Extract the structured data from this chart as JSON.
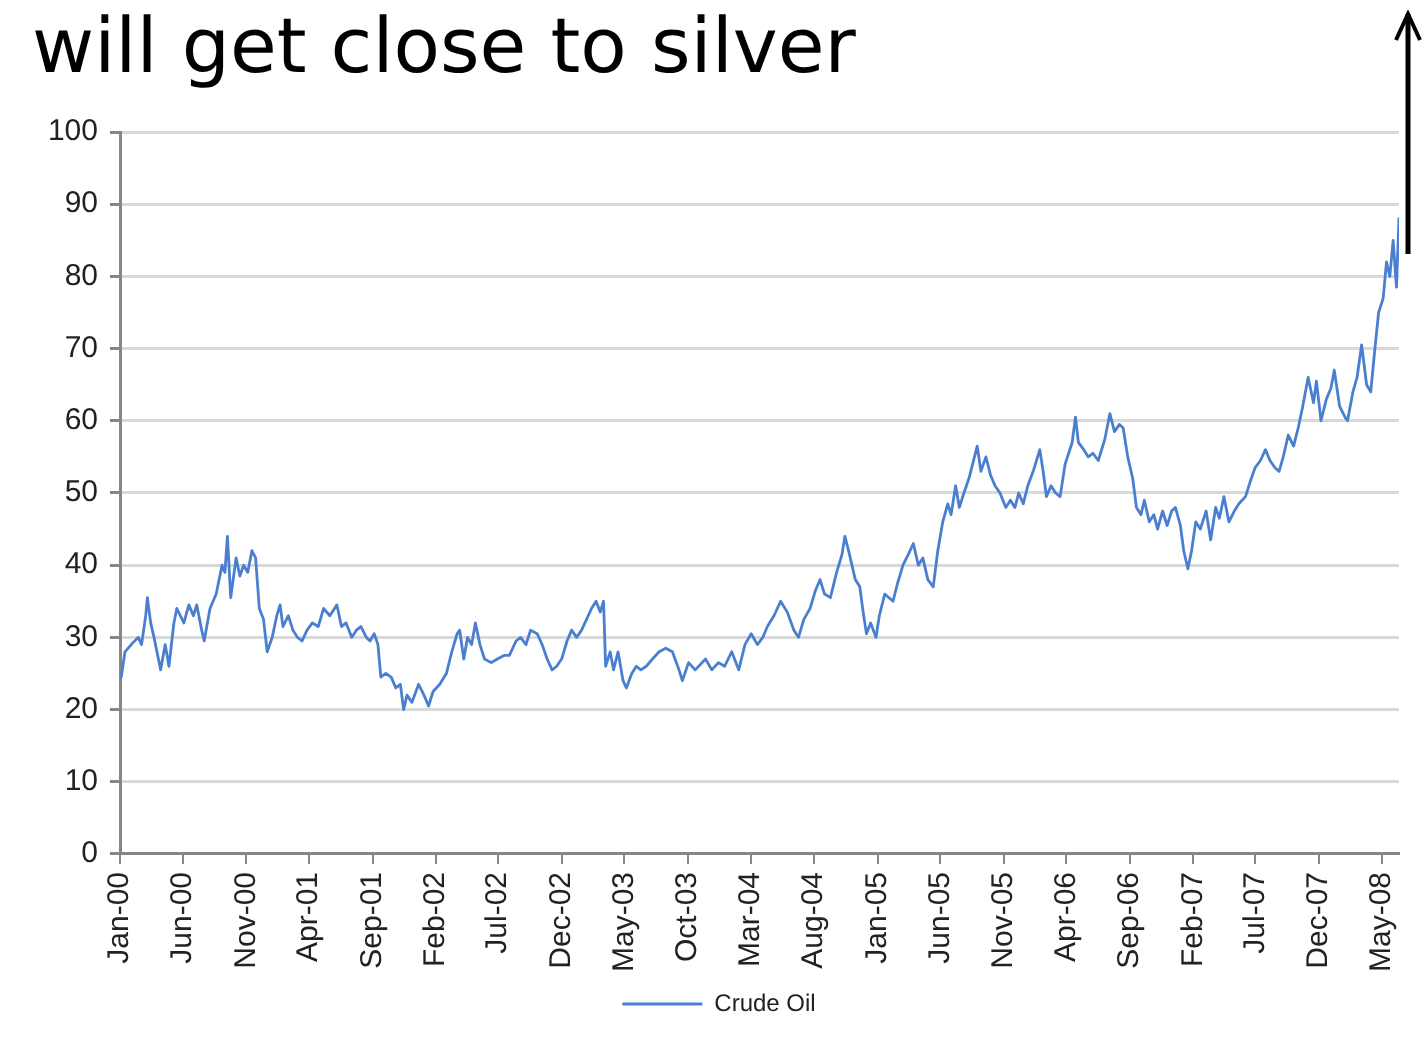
{
  "chart_data": {
    "type": "line",
    "title": "will get close to silver",
    "x": [
      "2000-01-04",
      "2000-01-13",
      "2000-01-28",
      "2000-02-14",
      "2000-02-22",
      "2000-03-03",
      "2000-03-07",
      "2000-03-15",
      "2000-03-23",
      "2000-04-08",
      "2000-04-19",
      "2000-04-28",
      "2000-05-10",
      "2000-05-17",
      "2000-06-03",
      "2000-06-15",
      "2000-06-26",
      "2000-07-04",
      "2000-07-16",
      "2000-07-22",
      "2000-08-05",
      "2000-08-20",
      "2000-09-03",
      "2000-09-10",
      "2000-09-16",
      "2000-09-24",
      "2000-10-07",
      "2000-10-16",
      "2000-10-25",
      "2000-11-04",
      "2000-11-14",
      "2000-11-23",
      "2000-12-02",
      "2000-12-12",
      "2000-12-21",
      "2001-01-02",
      "2001-01-13",
      "2001-01-21",
      "2001-01-28",
      "2001-02-10",
      "2001-02-21",
      "2001-03-04",
      "2001-03-15",
      "2001-03-27",
      "2001-04-09",
      "2001-04-23",
      "2001-05-06",
      "2001-05-21",
      "2001-06-07",
      "2001-06-18",
      "2001-06-29",
      "2001-07-13",
      "2001-07-24",
      "2001-08-04",
      "2001-08-17",
      "2001-08-26",
      "2001-09-05",
      "2001-09-14",
      "2001-09-21",
      "2001-10-03",
      "2001-10-16",
      "2001-10-27",
      "2001-11-07",
      "2001-11-15",
      "2001-11-23",
      "2001-12-05",
      "2001-12-21",
      "2002-01-03",
      "2002-01-14",
      "2002-01-25",
      "2002-02-10",
      "2002-02-26",
      "2002-03-11",
      "2002-03-24",
      "2002-03-30",
      "2002-04-09",
      "2002-04-18",
      "2002-04-28",
      "2002-05-07",
      "2002-05-18",
      "2002-05-29",
      "2002-06-14",
      "2002-06-29",
      "2002-07-15",
      "2002-07-28",
      "2002-08-13",
      "2002-08-24",
      "2002-09-06",
      "2002-09-17",
      "2002-10-03",
      "2002-10-15",
      "2002-10-27",
      "2002-11-08",
      "2002-11-19",
      "2002-12-01",
      "2002-12-14",
      "2002-12-25",
      "2003-01-06",
      "2003-01-18",
      "2003-01-30",
      "2003-02-11",
      "2003-02-22",
      "2003-03-04",
      "2003-03-12",
      "2003-03-17",
      "2003-03-28",
      "2003-04-05",
      "2003-04-16",
      "2003-04-28",
      "2003-05-06",
      "2003-05-19",
      "2003-05-30",
      "2003-06-10",
      "2003-06-23",
      "2003-07-08",
      "2003-07-24",
      "2003-08-09",
      "2003-08-25",
      "2003-09-10",
      "2003-09-18",
      "2003-10-03",
      "2003-10-19",
      "2003-11-13",
      "2003-11-28",
      "2003-12-14",
      "2003-12-29",
      "2004-01-15",
      "2004-02-01",
      "2004-02-16",
      "2004-03-02",
      "2004-03-17",
      "2004-03-30",
      "2004-04-10",
      "2004-04-26",
      "2004-05-12",
      "2004-05-28",
      "2004-06-13",
      "2004-06-24",
      "2004-07-07",
      "2004-07-22",
      "2004-08-04",
      "2004-08-15",
      "2004-08-26",
      "2004-09-09",
      "2004-09-24",
      "2004-10-07",
      "2004-10-14",
      "2004-10-25",
      "2004-11-08",
      "2004-11-19",
      "2004-11-27",
      "2004-12-05",
      "2004-12-15",
      "2004-12-28",
      "2005-01-05",
      "2005-01-18",
      "2005-02-07",
      "2005-02-18",
      "2005-03-03",
      "2005-03-16",
      "2005-03-28",
      "2005-04-09",
      "2005-04-20",
      "2005-05-02",
      "2005-05-15",
      "2005-05-26",
      "2005-06-07",
      "2005-06-19",
      "2005-06-27",
      "2005-07-08",
      "2005-07-17",
      "2005-07-28",
      "2005-08-09",
      "2005-08-18",
      "2005-08-29",
      "2005-09-07",
      "2005-09-19",
      "2005-09-30",
      "2005-10-11",
      "2005-10-23",
      "2005-11-06",
      "2005-11-17",
      "2005-11-28",
      "2005-12-07",
      "2005-12-18",
      "2005-12-29",
      "2006-01-11",
      "2006-01-27",
      "2006-02-04",
      "2006-02-12",
      "2006-02-23",
      "2006-03-06",
      "2006-03-17",
      "2006-03-29",
      "2006-04-15",
      "2006-04-23",
      "2006-04-30",
      "2006-05-13",
      "2006-05-24",
      "2006-06-04",
      "2006-06-17",
      "2006-07-03",
      "2006-07-15",
      "2006-07-26",
      "2006-08-07",
      "2006-08-16",
      "2006-08-27",
      "2006-09-08",
      "2006-09-17",
      "2006-09-28",
      "2006-10-06",
      "2006-10-18",
      "2006-10-29",
      "2006-11-07",
      "2006-11-19",
      "2006-11-30",
      "2006-12-11",
      "2006-12-20",
      "2007-01-01",
      "2007-01-09",
      "2007-01-19",
      "2007-01-28",
      "2007-02-07",
      "2007-02-18",
      "2007-03-04",
      "2007-03-15",
      "2007-03-27",
      "2007-04-05",
      "2007-04-16",
      "2007-04-28",
      "2007-05-11",
      "2007-05-22",
      "2007-06-07",
      "2007-06-18",
      "2007-06-30",
      "2007-07-13",
      "2007-07-25",
      "2007-08-05",
      "2007-08-17",
      "2007-08-27",
      "2007-09-06",
      "2007-09-18",
      "2007-10-01",
      "2007-10-12",
      "2007-10-23",
      "2007-11-05",
      "2007-11-18",
      "2007-11-25",
      "2007-12-06",
      "2007-12-19",
      "2007-12-30",
      "2008-01-07",
      "2008-01-20",
      "2008-02-02",
      "2008-02-08",
      "2008-02-21",
      "2008-03-02",
      "2008-03-13",
      "2008-03-25",
      "2008-04-04",
      "2008-04-14",
      "2008-04-23",
      "2008-05-04",
      "2008-05-12",
      "2008-05-20",
      "2008-05-28",
      "2008-06-05",
      "2008-06-11"
    ],
    "series": [
      {
        "name": "Crude Oil",
        "color": "#4a7fd0",
        "values": [
          24.5,
          28,
          29,
          30,
          29,
          33,
          35.5,
          32,
          30,
          25.5,
          29,
          26,
          32,
          34,
          32,
          34.5,
          33,
          34.5,
          31,
          29.5,
          34,
          36,
          40,
          39,
          44,
          35.5,
          41,
          38.5,
          40,
          39,
          42,
          41,
          34,
          32.5,
          28,
          30,
          33,
          34.5,
          31.5,
          33,
          31,
          30,
          29.5,
          31,
          32,
          31.5,
          34,
          33,
          34.5,
          31.5,
          32,
          30,
          31,
          31.5,
          30,
          29.5,
          30.5,
          29,
          24.5,
          25,
          24.5,
          23,
          23.5,
          20,
          22,
          21,
          23.5,
          22,
          20.5,
          22.5,
          23.5,
          25,
          28,
          30.5,
          31,
          27,
          30,
          29,
          32,
          29,
          27,
          26.5,
          27,
          27.5,
          27.5,
          29.5,
          30,
          29,
          31,
          30.5,
          29,
          27,
          25.5,
          26,
          27,
          29.5,
          31,
          30,
          31,
          32.5,
          34,
          35,
          33.5,
          35,
          26,
          28,
          25.5,
          28,
          24,
          23,
          25,
          26,
          25.5,
          26,
          27,
          28,
          28.5,
          28,
          25.5,
          24,
          26.5,
          25.5,
          27,
          25.5,
          26.5,
          26,
          28,
          25.5,
          29,
          30.5,
          29,
          30,
          31.5,
          33,
          35,
          33.5,
          31,
          30,
          32.5,
          34,
          36.5,
          38,
          36,
          35.5,
          39,
          41.5,
          44,
          41.5,
          38,
          37,
          33.5,
          30.5,
          32,
          30,
          33,
          36,
          35,
          37.5,
          40,
          41.5,
          43,
          40,
          41,
          38,
          37,
          42,
          46,
          48.5,
          47,
          51,
          48,
          50,
          52,
          54,
          56.5,
          53,
          55,
          52.5,
          51,
          50,
          48,
          49,
          48,
          50,
          48.5,
          51,
          53,
          56,
          53,
          49.5,
          51,
          50,
          49.5,
          54,
          57,
          60.5,
          57,
          56,
          55,
          55.5,
          54.5,
          57.5,
          61,
          58.5,
          59.5,
          59,
          55,
          52,
          48,
          47,
          49,
          46,
          47,
          45,
          47.5,
          45.5,
          47.5,
          48,
          45.5,
          42,
          39.5,
          42,
          46,
          45,
          47.5,
          43.5,
          48,
          46.5,
          49.5,
          46,
          47.5,
          48.5,
          49.5,
          51.5,
          53.5,
          54.5,
          56,
          54.5,
          53.5,
          53,
          55,
          58,
          56.5,
          59,
          62,
          66,
          62.5,
          65.5,
          60,
          63,
          64.5,
          67,
          62,
          60.5,
          60,
          64,
          66,
          70.5,
          65,
          64,
          70,
          75,
          77,
          82,
          80,
          85,
          78.5,
          88
        ]
      }
    ],
    "xlim": [
      "2000-01",
      "2008-06-11"
    ],
    "xticks": [
      {
        "value": "2000-01",
        "label": "Jan-00"
      },
      {
        "value": "2000-06",
        "label": "Jun-00"
      },
      {
        "value": "2000-11",
        "label": "Nov-00"
      },
      {
        "value": "2001-04",
        "label": "Apr-01"
      },
      {
        "value": "2001-09",
        "label": "Sep-01"
      },
      {
        "value": "2002-02",
        "label": "Feb-02"
      },
      {
        "value": "2002-07",
        "label": "Jul-02"
      },
      {
        "value": "2002-12",
        "label": "Dec-02"
      },
      {
        "value": "2003-05",
        "label": "May-03"
      },
      {
        "value": "2003-10",
        "label": "Oct-03"
      },
      {
        "value": "2004-03",
        "label": "Mar-04"
      },
      {
        "value": "2004-08",
        "label": "Aug-04"
      },
      {
        "value": "2005-01",
        "label": "Jan-05"
      },
      {
        "value": "2005-06",
        "label": "Jun-05"
      },
      {
        "value": "2005-11",
        "label": "Nov-05"
      },
      {
        "value": "2006-04",
        "label": "Apr-06"
      },
      {
        "value": "2006-09",
        "label": "Sep-06"
      },
      {
        "value": "2007-02",
        "label": "Feb-07"
      },
      {
        "value": "2007-07",
        "label": "Jul-07"
      },
      {
        "value": "2007-12",
        "label": "Dec-07"
      },
      {
        "value": "2008-05",
        "label": "May-08"
      }
    ],
    "ylim": [
      0,
      100
    ],
    "yticks": [
      0,
      10,
      20,
      30,
      40,
      50,
      60,
      70,
      80,
      90,
      100
    ],
    "grid": "y",
    "legend": "bottom",
    "marker": "none"
  }
}
